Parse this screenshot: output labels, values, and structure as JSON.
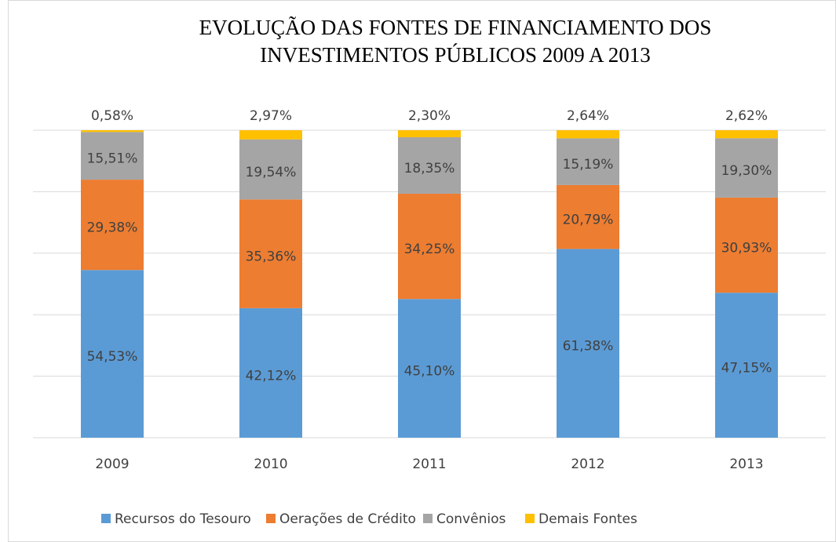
{
  "chart_data": {
    "type": "stacked_bar",
    "title": [
      "EVOLUÇÃO DAS FONTES DE FINANCIAMENTO DOS",
      "INVESTIMENTOS PÚBLICOS 2009 A 2013"
    ],
    "categories": [
      "2009",
      "2010",
      "2011",
      "2012",
      "2013"
    ],
    "series": [
      {
        "name": "Recursos do Tesouro",
        "color": "#5b9bd5",
        "values": [
          54.53,
          42.12,
          45.1,
          61.38,
          47.15
        ],
        "value_labels": [
          "54,53%",
          "42,12%",
          "45,10%",
          "61,38%",
          "47,15%"
        ]
      },
      {
        "name": "Oerações de Crédito",
        "color": "#ed7d31",
        "values": [
          29.38,
          35.36,
          34.25,
          20.79,
          30.93
        ],
        "value_labels": [
          "29,38%",
          "35,36%",
          "34,25%",
          "20,79%",
          "30,93%"
        ]
      },
      {
        "name": "Convênios",
        "color": "#a5a5a5",
        "values": [
          15.51,
          19.54,
          18.35,
          15.19,
          19.3
        ],
        "value_labels": [
          "15,51%",
          "19,54%",
          "18,35%",
          "15,19%",
          "19,30%"
        ]
      },
      {
        "name": "Demais Fontes",
        "color": "#ffc000",
        "values": [
          0.58,
          2.97,
          2.3,
          2.64,
          2.62
        ],
        "value_labels": [
          "0,58%",
          "2,97%",
          "2,30%",
          "2,64%",
          "2,62%"
        ]
      }
    ],
    "ylim": [
      0,
      100
    ],
    "yticks": [
      0,
      20,
      40,
      60,
      80,
      100
    ],
    "grid": true,
    "legend": "bottom"
  }
}
